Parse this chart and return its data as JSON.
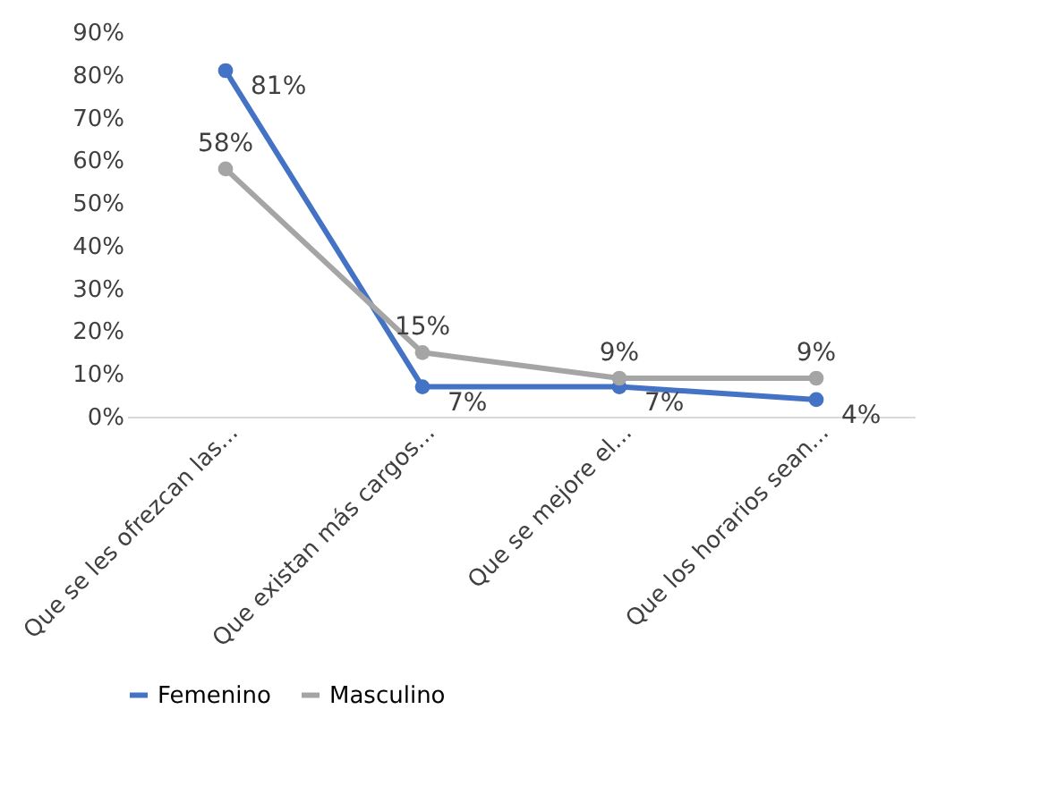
{
  "chart_data": {
    "type": "line",
    "categories": [
      "Que se les ofrezcan las...",
      "Que existan más cargos...",
      "Que se mejore el...",
      "Que los horarios sean..."
    ],
    "series": [
      {
        "name": "Femenino",
        "color": "#4472c4",
        "values": [
          81,
          7,
          7,
          4
        ],
        "value_labels": [
          "81%",
          "7%",
          "7%",
          "4%"
        ]
      },
      {
        "name": "Masculino",
        "color": "#a5a5a5",
        "values": [
          58,
          15,
          9,
          9
        ],
        "value_labels": [
          "58%",
          "15%",
          "9%",
          "9%"
        ]
      }
    ],
    "ylim": [
      0,
      90
    ],
    "yticks": [
      {
        "value": 0,
        "label": "0%"
      },
      {
        "value": 10,
        "label": "10%"
      },
      {
        "value": 20,
        "label": "20%"
      },
      {
        "value": 30,
        "label": "30%"
      },
      {
        "value": 40,
        "label": "40%"
      },
      {
        "value": 50,
        "label": "50%"
      },
      {
        "value": 60,
        "label": "60%"
      },
      {
        "value": 70,
        "label": "70%"
      },
      {
        "value": 80,
        "label": "80%"
      },
      {
        "value": 90,
        "label": "90%"
      }
    ],
    "grid": false,
    "legend": "bottom",
    "marker": "circle",
    "line_style": "solid"
  }
}
